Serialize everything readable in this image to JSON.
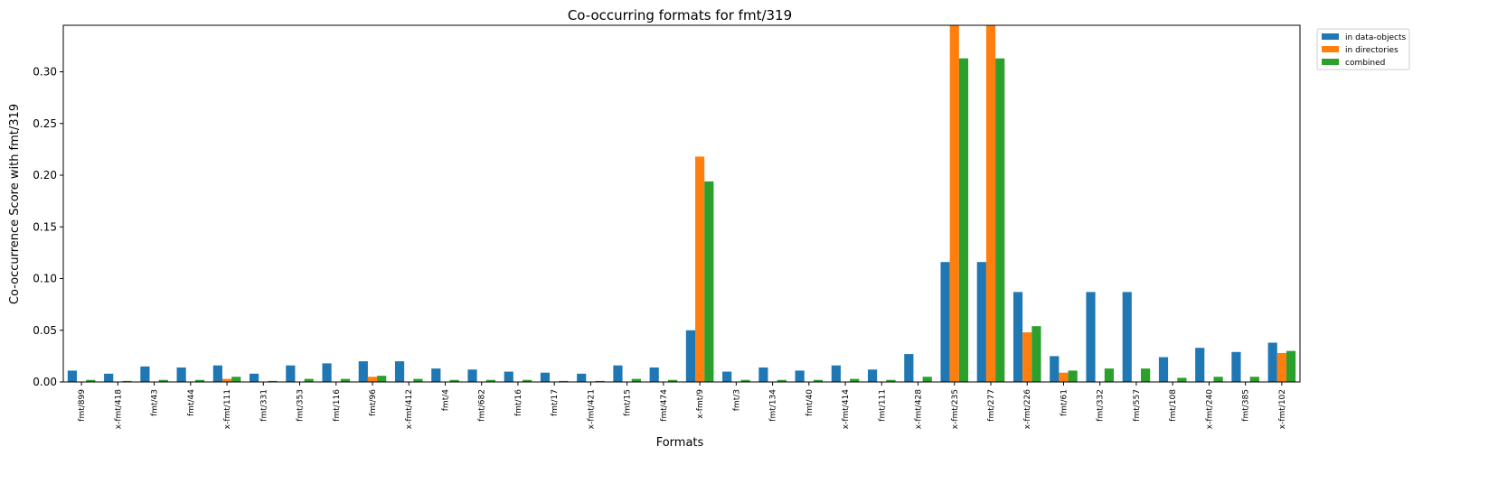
{
  "chart_data": {
    "type": "bar",
    "title": "Co-occurring formats for fmt/319",
    "xlabel": "Formats",
    "ylabel": "Co-occurrence Score with fmt/319",
    "ylim": [
      0,
      0.345
    ],
    "yticks": [
      "0.00",
      "0.05",
      "0.10",
      "0.15",
      "0.20",
      "0.25",
      "0.30"
    ],
    "legend_position": "upper-right-outside",
    "grid": false,
    "categories": [
      "fmt/899",
      "x-fmt/418",
      "fmt/43",
      "fmt/44",
      "x-fmt/111",
      "fmt/331",
      "fmt/353",
      "fmt/116",
      "fmt/96",
      "x-fmt/412",
      "fmt/4",
      "fmt/682",
      "fmt/16",
      "fmt/17",
      "x-fmt/421",
      "fmt/15",
      "fmt/474",
      "x-fmt/9",
      "fmt/3",
      "fmt/134",
      "fmt/40",
      "x-fmt/414",
      "fmt/111",
      "x-fmt/428",
      "x-fmt/235",
      "fmt/277",
      "x-fmt/226",
      "fmt/61",
      "fmt/332",
      "fmt/557",
      "fmt/108",
      "x-fmt/240",
      "fmt/385",
      "x-fmt/102"
    ],
    "series": [
      {
        "name": "in data-objects",
        "color": "#1f77b4",
        "values": [
          0.011,
          0.008,
          0.015,
          0.014,
          0.016,
          0.008,
          0.016,
          0.018,
          0.02,
          0.02,
          0.013,
          0.012,
          0.01,
          0.009,
          0.008,
          0.016,
          0.014,
          0.05,
          0.01,
          0.014,
          0.011,
          0.016,
          0.012,
          0.027,
          0.116,
          0.116,
          0.087,
          0.025,
          0.087,
          0.087,
          0.024,
          0.033,
          0.029,
          0.038
        ]
      },
      {
        "name": "in directories",
        "color": "#ff7f0e",
        "values": [
          0,
          0,
          0,
          0,
          0.003,
          0,
          0,
          0,
          0.005,
          0,
          0,
          0,
          0,
          0,
          0,
          0,
          0,
          0.218,
          0,
          0,
          0,
          0,
          0,
          0,
          0.345,
          0.345,
          0.048,
          0.009,
          0,
          0,
          0,
          0,
          0,
          0.028
        ]
      },
      {
        "name": "combined",
        "color": "#2ca02c",
        "values": [
          0.002,
          0.001,
          0.002,
          0.002,
          0.005,
          0.001,
          0.003,
          0.003,
          0.006,
          0.003,
          0.002,
          0.002,
          0.002,
          0.001,
          0.001,
          0.003,
          0.002,
          0.194,
          0.002,
          0.002,
          0.002,
          0.003,
          0.002,
          0.005,
          0.313,
          0.313,
          0.054,
          0.011,
          0.013,
          0.013,
          0.004,
          0.005,
          0.005,
          0.03
        ]
      }
    ]
  }
}
